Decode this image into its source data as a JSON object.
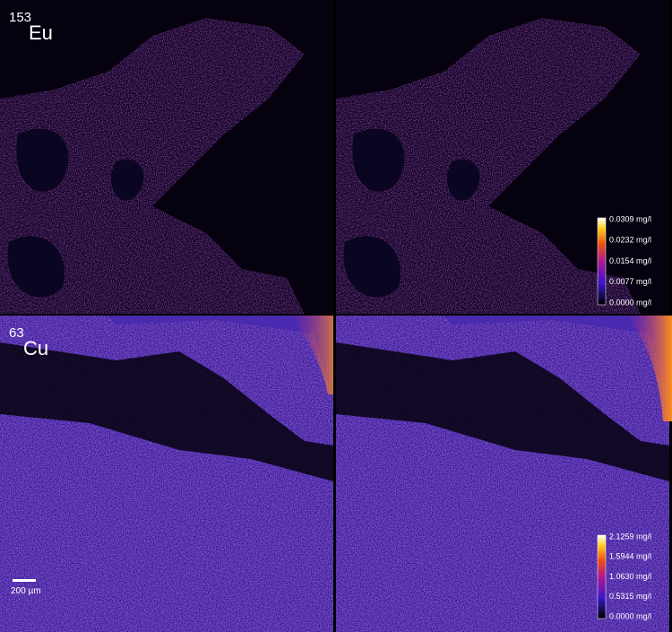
{
  "panels": [
    {
      "mass": "153",
      "element": "Eu",
      "colorbar": [
        "0.0309 mg/l",
        "0.0232 mg/l",
        "0.0154 mg/l",
        "0.0077 mg/l",
        "0.0000 mg/l"
      ]
    },
    {
      "mass": "63",
      "element": "Cu",
      "colorbar": [
        "2.1259 mg/l",
        "1.5944 mg/l",
        "1.0630 mg/l",
        "0.5315 mg/l",
        "0.0000 mg/l"
      ]
    }
  ],
  "scale_bar": "200 µm"
}
